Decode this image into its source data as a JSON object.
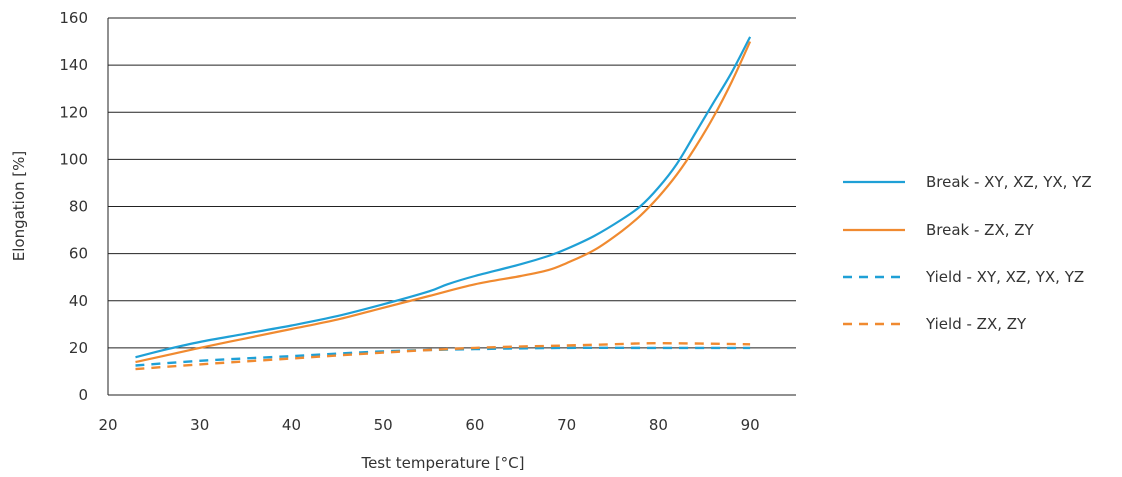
{
  "chart_data": {
    "type": "line",
    "title": "",
    "xlabel": "Test temperature [°C]",
    "ylabel": "Elongation [%]",
    "xlim": [
      20,
      95
    ],
    "ylim": [
      0,
      160
    ],
    "xticks": [
      20,
      30,
      40,
      50,
      60,
      70,
      80,
      90
    ],
    "yticks": [
      0,
      20,
      40,
      60,
      80,
      100,
      120,
      140,
      160
    ],
    "grid": "horizontal",
    "legend_position": "right",
    "series": [
      {
        "name": "Break - XY, XZ, YX, YZ",
        "color": "#1fa0d6",
        "style": "solid",
        "x": [
          23,
          26,
          30,
          35,
          40,
          45,
          50,
          55,
          57,
          60,
          65,
          68,
          70,
          73,
          76,
          78,
          80,
          82,
          84,
          86,
          88,
          90
        ],
        "y": [
          16,
          19,
          22.5,
          26,
          29.5,
          33.5,
          38.5,
          44,
          47,
          50.5,
          55.5,
          59,
          62,
          67.5,
          74.5,
          80,
          88,
          98,
          111,
          124,
          137,
          152
        ]
      },
      {
        "name": "Break - ZX, ZY",
        "color": "#f08a30",
        "style": "solid",
        "x": [
          23,
          26,
          30,
          35,
          40,
          45,
          50,
          55,
          60,
          65,
          68,
          70,
          73,
          76,
          78,
          80,
          82,
          84,
          86,
          88,
          90
        ],
        "y": [
          14,
          16.5,
          20,
          24,
          28,
          32,
          37,
          42,
          47,
          50.5,
          53,
          56,
          61.5,
          69.5,
          76,
          84,
          93.5,
          105,
          118,
          133,
          150
        ]
      },
      {
        "name": "Yield - XY, XZ, YX, YZ",
        "color": "#1fa0d6",
        "style": "dashed",
        "x": [
          23,
          30,
          40,
          50,
          60,
          70,
          80,
          90
        ],
        "y": [
          12.5,
          14.5,
          16.5,
          18.5,
          19.5,
          20,
          20,
          20
        ]
      },
      {
        "name": "Yield - ZX, ZY",
        "color": "#f08a30",
        "style": "dashed",
        "x": [
          23,
          30,
          40,
          50,
          60,
          70,
          75,
          80,
          90
        ],
        "y": [
          11,
          13,
          15.5,
          18,
          20,
          21,
          21.5,
          22,
          21.5
        ]
      }
    ]
  }
}
